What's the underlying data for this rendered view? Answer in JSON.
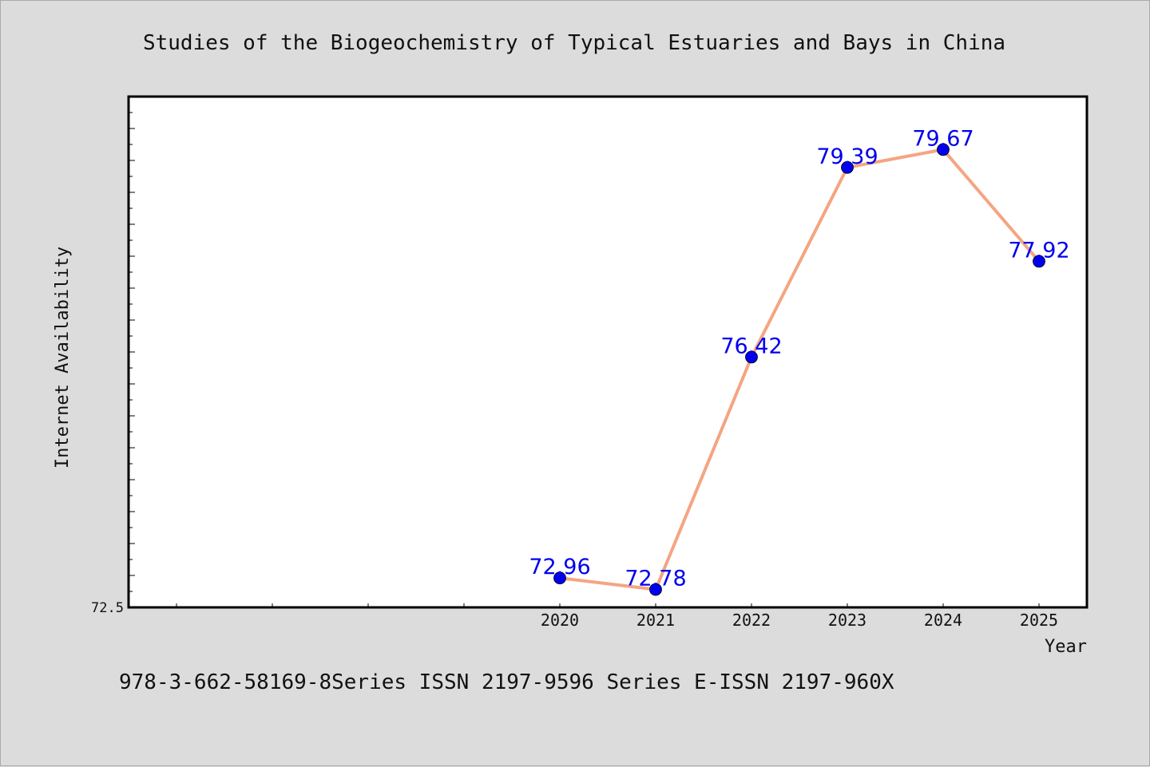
{
  "title": "Studies of the Biogeochemistry of Typical Estuaries and Bays in China",
  "footer": "978-3-662-58169-8Series ISSN 2197-9596 Series E-ISSN 2197-960X",
  "colors": {
    "background": "#dcdcdc",
    "plot_background": "#ffffff",
    "line": "#f4a582",
    "marker": "#0000ee",
    "data_label": "#0000ee"
  },
  "chart_data": {
    "type": "line",
    "title": "Studies of the Biogeochemistry of Typical Estuaries and Bays in China",
    "xlabel": "Year",
    "ylabel": "Internet Availability",
    "categories": [
      "2020",
      "2021",
      "2022",
      "2023",
      "2024",
      "2025"
    ],
    "values": [
      72.96,
      72.78,
      76.42,
      79.39,
      79.67,
      77.92
    ],
    "data_labels": [
      "72.96",
      "72.78",
      "76.42",
      "79.39",
      "79.67",
      "77.92"
    ],
    "ylim": [
      72.5,
      80.5
    ],
    "ytick_labels": [
      "72.5"
    ],
    "x_start_slot": -4,
    "grid": false,
    "legend": "none"
  }
}
